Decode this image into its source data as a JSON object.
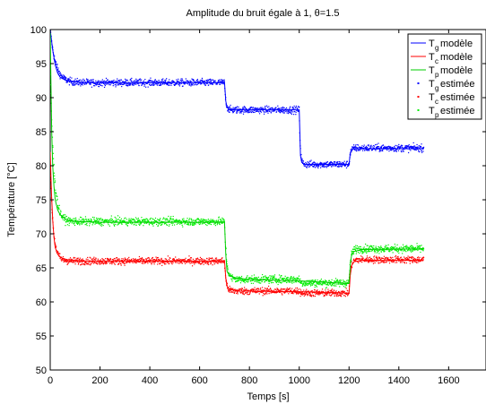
{
  "chart_data": {
    "type": "line",
    "title": "Amplitude du bruit égale à 1, θ=1.5",
    "xlabel": "Temps [s]",
    "ylabel": "Température [°C]",
    "xlim": [
      0,
      1750
    ],
    "ylim": [
      50,
      100
    ],
    "xticks": [
      0,
      200,
      400,
      600,
      800,
      1000,
      1200,
      1400,
      1600
    ],
    "yticks": [
      50,
      55,
      60,
      65,
      70,
      75,
      80,
      85,
      90,
      95,
      100
    ],
    "grid": false,
    "legend_position": "top-right",
    "series": [
      {
        "name": "Tg modèle",
        "legend_main": "T",
        "legend_sub": "g",
        "legend_rest": "modèle",
        "style": "line",
        "color": "#0000ff",
        "x": [
          0,
          10,
          20,
          30,
          40,
          60,
          80,
          100,
          150,
          200,
          699,
          700,
          705,
          710,
          720,
          999,
          1000,
          1005,
          1010,
          1020,
          1199,
          1200,
          1205,
          1210,
          1220,
          1500
        ],
        "y": [
          100,
          97,
          94.8,
          93.6,
          93.0,
          92.6,
          92.4,
          92.3,
          92.2,
          92.2,
          92.2,
          92.2,
          89.5,
          88.6,
          88.2,
          88.2,
          88.2,
          81.5,
          80.5,
          80.2,
          80.2,
          80.2,
          81.9,
          82.3,
          82.5,
          82.5
        ]
      },
      {
        "name": "Tc modèle",
        "legend_main": "T",
        "legend_sub": "c",
        "legend_rest": "modèle",
        "style": "line",
        "color": "#ff0000",
        "x": [
          0,
          5,
          10,
          15,
          20,
          30,
          40,
          50,
          70,
          100,
          150,
          699,
          700,
          705,
          710,
          720,
          740,
          760,
          999,
          1000,
          1199,
          1200,
          1205,
          1210,
          1220,
          1250,
          1500
        ],
        "y": [
          82,
          76,
          72,
          69.5,
          68,
          67,
          66.6,
          66.4,
          66.2,
          66.1,
          66.0,
          66.0,
          66.0,
          63.5,
          62.3,
          61.9,
          61.7,
          61.6,
          61.5,
          61.5,
          61.3,
          61.3,
          64.0,
          65.3,
          65.9,
          66.1,
          66.1
        ]
      },
      {
        "name": "Tp modèle",
        "legend_main": "T",
        "legend_sub": "p",
        "legend_rest": "modèle",
        "style": "line",
        "color": "#00cc00",
        "x": [
          0,
          3,
          6,
          10,
          15,
          20,
          30,
          40,
          60,
          80,
          120,
          200,
          699,
          700,
          705,
          710,
          720,
          750,
          800,
          999,
          1000,
          1199,
          1200,
          1205,
          1210,
          1220,
          1250,
          1500
        ],
        "y": [
          100,
          92,
          85,
          80,
          77,
          75,
          73.5,
          72.8,
          72.2,
          71.9,
          71.8,
          71.7,
          71.7,
          71.7,
          67,
          64.5,
          63.8,
          63.5,
          63.3,
          63.1,
          63.1,
          62.7,
          62.7,
          65.5,
          66.8,
          67.4,
          67.7,
          67.8
        ]
      },
      {
        "name": "Tg estimée",
        "legend_main": "T",
        "legend_sub": "g",
        "legend_rest": "estimée",
        "style": "points",
        "color": "#0000ff",
        "noise": 0.5,
        "segments": [
          {
            "x0": 0,
            "x1": 699,
            "type": "decay",
            "start": 100,
            "end": 92.2,
            "tau": 22
          },
          {
            "x0": 700,
            "x1": 999,
            "type": "step",
            "start": 92.2,
            "end": 88.2,
            "tau": 5
          },
          {
            "x0": 1000,
            "x1": 1199,
            "type": "step",
            "start": 88.2,
            "end": 80.2,
            "tau": 4
          },
          {
            "x0": 1200,
            "x1": 1500,
            "type": "step",
            "start": 80.2,
            "end": 82.6,
            "tau": 5
          }
        ]
      },
      {
        "name": "Tc estimée",
        "legend_main": "T",
        "legend_sub": "c",
        "legend_rest": "estimée",
        "style": "points",
        "color": "#ff0000",
        "noise": 0.5,
        "segments": [
          {
            "x0": 0,
            "x1": 699,
            "type": "decay",
            "start": 80,
            "end": 66.0,
            "tau": 12
          },
          {
            "x0": 700,
            "x1": 999,
            "type": "step",
            "start": 66.0,
            "end": 61.6,
            "tau": 6
          },
          {
            "x0": 1000,
            "x1": 1199,
            "type": "step",
            "start": 61.6,
            "end": 61.3,
            "tau": 5
          },
          {
            "x0": 1200,
            "x1": 1500,
            "type": "step",
            "start": 61.3,
            "end": 66.2,
            "tau": 6
          }
        ]
      },
      {
        "name": "Tp estimée",
        "legend_main": "T",
        "legend_sub": "p",
        "legend_rest": "estimée",
        "style": "points",
        "color": "#00ee00",
        "noise": 0.55,
        "segments": [
          {
            "x0": 0,
            "x1": 699,
            "type": "decay",
            "start": 95,
            "end": 71.8,
            "tau": 14
          },
          {
            "x0": 700,
            "x1": 999,
            "type": "step",
            "start": 71.8,
            "end": 63.3,
            "tau": 8
          },
          {
            "x0": 1000,
            "x1": 1199,
            "type": "step",
            "start": 63.3,
            "end": 62.8,
            "tau": 5
          },
          {
            "x0": 1200,
            "x1": 1500,
            "type": "step",
            "start": 62.8,
            "end": 67.8,
            "tau": 6
          }
        ]
      }
    ]
  }
}
